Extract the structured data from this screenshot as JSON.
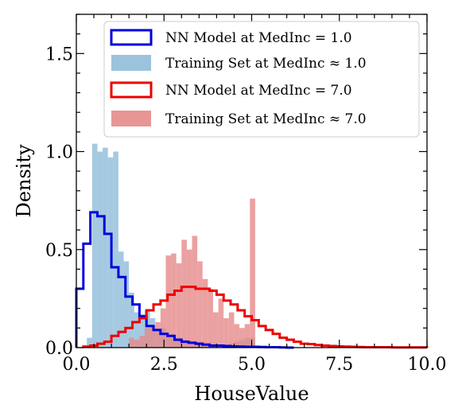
{
  "chart_data": {
    "type": "histogram",
    "xlabel": "HouseValue",
    "ylabel": "Density",
    "xlim": [
      0.0,
      10.0
    ],
    "ylim": [
      0.0,
      1.7
    ],
    "xticks": [
      0.0,
      2.5,
      5.0,
      7.5,
      10.0
    ],
    "xtick_labels": [
      "0.0",
      "2.5",
      "5.0",
      "7.5",
      "10.0"
    ],
    "yticks": [
      0.0,
      0.5,
      1.0,
      1.5
    ],
    "ytick_labels": [
      "0.0",
      "0.5",
      "1.0",
      "1.5"
    ],
    "grid": false,
    "legend_position": "top-right",
    "series": [
      {
        "name": "NN Model at MedInc = 1.0",
        "style": "step",
        "color": "#0000dd",
        "bin_width": 0.2,
        "x": [
          0.0,
          0.2,
          0.4,
          0.6,
          0.8,
          1.0,
          1.2,
          1.4,
          1.6,
          1.8,
          2.0,
          2.2,
          2.4,
          2.6,
          2.8,
          3.0,
          3.2,
          3.4,
          3.6,
          3.8,
          4.0,
          4.2,
          4.4,
          4.6,
          4.8,
          5.0,
          5.2,
          5.4,
          5.6,
          5.8,
          6.0
        ],
        "values": [
          0.3,
          0.53,
          0.69,
          0.67,
          0.58,
          0.41,
          0.36,
          0.26,
          0.22,
          0.16,
          0.11,
          0.09,
          0.07,
          0.06,
          0.04,
          0.03,
          0.025,
          0.02,
          0.015,
          0.01,
          0.01,
          0.008,
          0.006,
          0.005,
          0.004,
          0.004,
          0.003,
          0.002,
          0.002,
          0.001,
          0.0
        ]
      },
      {
        "name": "Training Set at MedInc ≈ 1.0",
        "style": "filled",
        "color": "#8fbcd9",
        "bin_width": 0.15,
        "x": [
          0.3,
          0.45,
          0.6,
          0.75,
          0.9,
          1.05,
          1.2,
          1.35,
          1.5,
          1.65,
          1.8,
          1.95,
          2.1,
          2.25,
          2.4,
          2.55,
          2.7,
          2.85,
          3.0,
          3.15,
          3.3,
          3.45,
          3.6,
          3.75,
          3.9,
          4.05,
          4.2,
          4.35,
          4.5,
          4.65,
          4.8,
          4.95
        ],
        "values": [
          0.05,
          1.04,
          1.0,
          1.02,
          0.97,
          1.0,
          0.49,
          0.44,
          0.28,
          0.18,
          0.17,
          0.19,
          0.15,
          0.08,
          0.1,
          0.06,
          0.06,
          0.05,
          0.04,
          0.03,
          0.02,
          0.03,
          0.02,
          0.02,
          0.02,
          0.01,
          0.01,
          0.02,
          0.03,
          0.04,
          0.05,
          0.05
        ]
      },
      {
        "name": "NN Model at MedInc = 7.0",
        "style": "step",
        "color": "#ee0000",
        "bin_width": 0.2,
        "x": [
          0.2,
          0.4,
          0.6,
          0.8,
          1.0,
          1.2,
          1.4,
          1.6,
          1.8,
          2.0,
          2.2,
          2.4,
          2.6,
          2.8,
          3.0,
          3.2,
          3.4,
          3.6,
          3.8,
          4.0,
          4.2,
          4.4,
          4.6,
          4.8,
          5.0,
          5.2,
          5.4,
          5.6,
          5.8,
          6.0,
          6.2,
          6.4,
          6.6,
          6.8,
          7.0,
          7.2,
          7.4,
          7.6,
          7.8,
          8.0,
          8.2,
          8.4,
          8.6,
          8.8,
          9.0,
          9.2,
          9.4,
          9.6,
          9.8
        ],
        "values": [
          0.005,
          0.01,
          0.02,
          0.03,
          0.06,
          0.08,
          0.1,
          0.13,
          0.15,
          0.19,
          0.22,
          0.24,
          0.27,
          0.29,
          0.31,
          0.31,
          0.3,
          0.3,
          0.29,
          0.27,
          0.24,
          0.22,
          0.19,
          0.16,
          0.14,
          0.11,
          0.09,
          0.07,
          0.05,
          0.04,
          0.03,
          0.02,
          0.018,
          0.013,
          0.01,
          0.008,
          0.006,
          0.005,
          0.004,
          0.003,
          0.002,
          0.002,
          0.002,
          0.002,
          0.001,
          0.001,
          0.001,
          0.001,
          0.001
        ]
      },
      {
        "name": "Training Set at MedInc ≈ 7.0",
        "style": "filled",
        "color": "#e68a8a",
        "bin_width": 0.15,
        "x": [
          1.5,
          1.65,
          1.8,
          1.95,
          2.1,
          2.25,
          2.4,
          2.55,
          2.7,
          2.85,
          3.0,
          3.15,
          3.3,
          3.45,
          3.6,
          3.75,
          3.9,
          4.05,
          4.2,
          4.35,
          4.5,
          4.65,
          4.8,
          4.95
        ],
        "values": [
          0.05,
          0.04,
          0.06,
          0.1,
          0.11,
          0.13,
          0.2,
          0.47,
          0.48,
          0.43,
          0.55,
          0.5,
          0.57,
          0.44,
          0.35,
          0.3,
          0.18,
          0.25,
          0.15,
          0.18,
          0.12,
          0.1,
          0.12,
          0.76
        ]
      }
    ]
  }
}
